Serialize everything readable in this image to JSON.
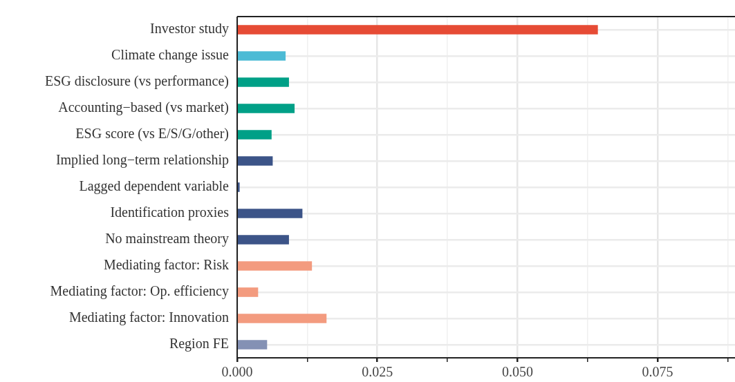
{
  "chart_data": {
    "type": "bar",
    "orientation": "horizontal",
    "categories": [
      "Investor study",
      "Climate change issue",
      "ESG disclosure (vs performance)",
      "Accounting−based (vs market)",
      "ESG score (vs E/S/G/other)",
      "Implied long−term relationship",
      "Lagged dependent variable",
      "Identification proxies",
      "No mainstream theory",
      "Mediating factor: Risk",
      "Mediating factor: Op. efficiency",
      "Mediating factor: Innovation",
      "Region FE"
    ],
    "values": [
      0.0643,
      0.0086,
      0.0092,
      0.0102,
      0.0061,
      0.0063,
      0.0004,
      0.0116,
      0.0092,
      0.0133,
      0.0037,
      0.0159,
      0.0053
    ],
    "colors": [
      "#e64b35",
      "#4dbbd5",
      "#00a087",
      "#00a087",
      "#00a087",
      "#3c5488",
      "#3c5488",
      "#3c5488",
      "#3c5488",
      "#f39b7f",
      "#f39b7f",
      "#f39b7f",
      "#8491b4"
    ],
    "xlim": [
      0,
      0.0888
    ],
    "xticks": [
      {
        "value": 0,
        "label": "0.000"
      },
      {
        "value": 0.0125,
        "label": null
      },
      {
        "value": 0.025,
        "label": "0.025"
      },
      {
        "value": 0.0375,
        "label": null
      },
      {
        "value": 0.05,
        "label": "0.050"
      },
      {
        "value": 0.0625,
        "label": null
      },
      {
        "value": 0.075,
        "label": "0.075"
      },
      {
        "value": 0.0875,
        "label": null
      }
    ],
    "grid": true,
    "legend": false
  }
}
